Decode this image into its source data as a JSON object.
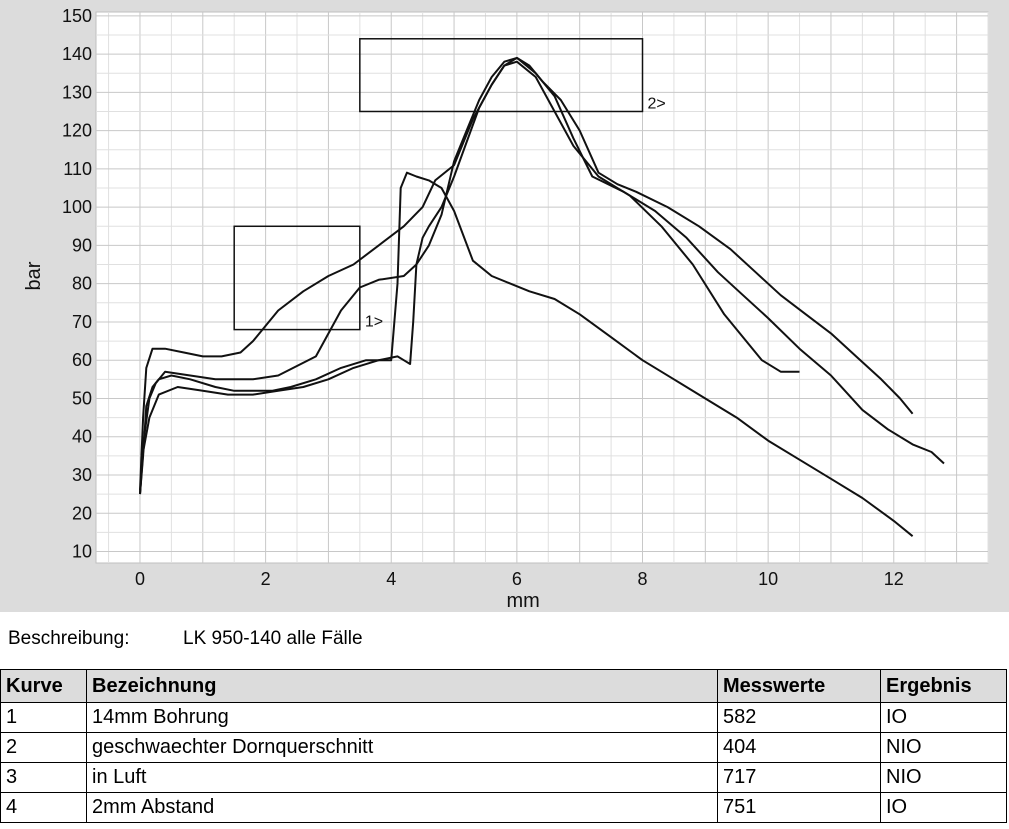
{
  "chart_data": {
    "type": "line",
    "xlabel": "mm",
    "ylabel": "bar",
    "xlim": [
      -0.7,
      13.5
    ],
    "ylim": [
      7,
      151
    ],
    "xticks": [
      0,
      2,
      4,
      6,
      8,
      10,
      12
    ],
    "yticks": [
      10,
      20,
      30,
      40,
      50,
      60,
      70,
      80,
      90,
      100,
      110,
      120,
      130,
      140,
      150
    ],
    "grid": true,
    "series": [
      {
        "x": [
          0,
          0.05,
          0.15,
          0.25,
          0.4,
          0.8,
          1.2,
          1.5,
          1.8,
          2.2,
          2.8,
          3.2,
          3.5,
          3.8,
          4.2,
          4.4,
          4.6,
          4.8,
          5.0,
          5.2,
          5.4,
          5.6,
          5.8,
          6.0,
          6.3,
          6.6,
          6.9,
          7.2,
          7.7,
          8.2,
          8.7,
          9.2,
          9.6,
          10.0,
          10.5,
          11.0,
          11.5,
          11.9,
          12.3,
          12.6,
          12.8
        ],
        "y": [
          25,
          38,
          50,
          54,
          57,
          56,
          55,
          55,
          55,
          56,
          61,
          73,
          79,
          81,
          82,
          85,
          90,
          98,
          112,
          120,
          128,
          134,
          138,
          139,
          135,
          129,
          118,
          108,
          104,
          99,
          92,
          83,
          77,
          71,
          63,
          56,
          47,
          42,
          38,
          36,
          33
        ]
      },
      {
        "x": [
          0,
          0.05,
          0.1,
          0.2,
          0.3,
          0.5,
          0.8,
          1.2,
          1.5,
          1.8,
          2.1,
          2.4,
          2.8,
          3.2,
          3.6,
          4.0,
          4.1,
          4.15,
          4.25,
          4.4,
          4.6,
          4.8,
          5.0,
          5.3,
          5.6,
          5.9,
          6.2,
          6.6,
          7.0,
          7.5,
          8.0,
          8.5,
          9.0,
          9.5,
          10.0,
          10.5,
          11.0,
          11.5,
          12.0,
          12.3
        ],
        "y": [
          25,
          35,
          48,
          53,
          55,
          56,
          55,
          53,
          52,
          52,
          52,
          53,
          55,
          58,
          60,
          60,
          80,
          105,
          109,
          108,
          107,
          105,
          99,
          86,
          82,
          80,
          78,
          76,
          72,
          66,
          60,
          55,
          50,
          45,
          39,
          34,
          29,
          24,
          18,
          14
        ]
      },
      {
        "x": [
          0,
          0.05,
          0.1,
          0.2,
          0.4,
          0.7,
          1.0,
          1.3,
          1.6,
          1.8,
          2.2,
          2.6,
          3.0,
          3.4,
          3.8,
          4.2,
          4.5,
          4.7,
          5.0,
          5.3,
          5.6,
          5.8,
          6.0,
          6.3,
          6.6,
          6.9,
          7.3,
          7.8,
          8.3,
          8.8,
          9.3,
          9.7,
          9.9,
          10.2,
          10.5
        ],
        "y": [
          26,
          45,
          58,
          63,
          63,
          62,
          61,
          61,
          62,
          65,
          73,
          78,
          82,
          85,
          90,
          95,
          100,
          107,
          111,
          123,
          132,
          137,
          138,
          134,
          125,
          116,
          108,
          103,
          95,
          85,
          72,
          64,
          60,
          57,
          57
        ]
      },
      {
        "x": [
          0,
          0.05,
          0.15,
          0.3,
          0.6,
          1.0,
          1.4,
          1.8,
          2.2,
          2.6,
          3.0,
          3.4,
          3.8,
          4.1,
          4.2,
          4.3,
          4.35,
          4.4,
          4.5,
          4.6,
          4.8,
          5.0,
          5.2,
          5.4,
          5.6,
          5.8,
          6.0,
          6.2,
          6.4,
          6.7,
          7.0,
          7.3,
          7.6,
          7.9,
          8.4,
          8.9,
          9.4,
          9.8,
          10.2,
          10.6,
          11.0,
          11.4,
          11.8,
          12.1,
          12.3
        ],
        "y": [
          25,
          36,
          45,
          51,
          53,
          52,
          51,
          51,
          52,
          53,
          55,
          58,
          60,
          61,
          60,
          59,
          70,
          85,
          92,
          95,
          100,
          108,
          117,
          126,
          132,
          137,
          139,
          137,
          133,
          128,
          120,
          109,
          106,
          104,
          100,
          95,
          89,
          83,
          77,
          72,
          67,
          61,
          55,
          50,
          46
        ]
      }
    ],
    "boxes": [
      {
        "label": "1>",
        "x0": 1.5,
        "x1": 3.5,
        "y0": 68,
        "y1": 95
      },
      {
        "label": "2>",
        "x0": 3.5,
        "x1": 8.0,
        "y0": 125,
        "y1": 144
      }
    ]
  },
  "description": {
    "label": "Beschreibung:",
    "value": "LK 950-140 alle Fälle"
  },
  "table": {
    "headers": [
      "Kurve",
      "Bezeichnung",
      "Messwerte",
      "Ergebnis"
    ],
    "rows": [
      [
        "1",
        "14mm Bohrung",
        "582",
        "IO"
      ],
      [
        "2",
        "geschwaechter Dornquerschnitt",
        "404",
        "NIO"
      ],
      [
        "3",
        "in Luft",
        "717",
        "NIO"
      ],
      [
        "4",
        "2mm Abstand",
        "751",
        "IO"
      ]
    ]
  }
}
